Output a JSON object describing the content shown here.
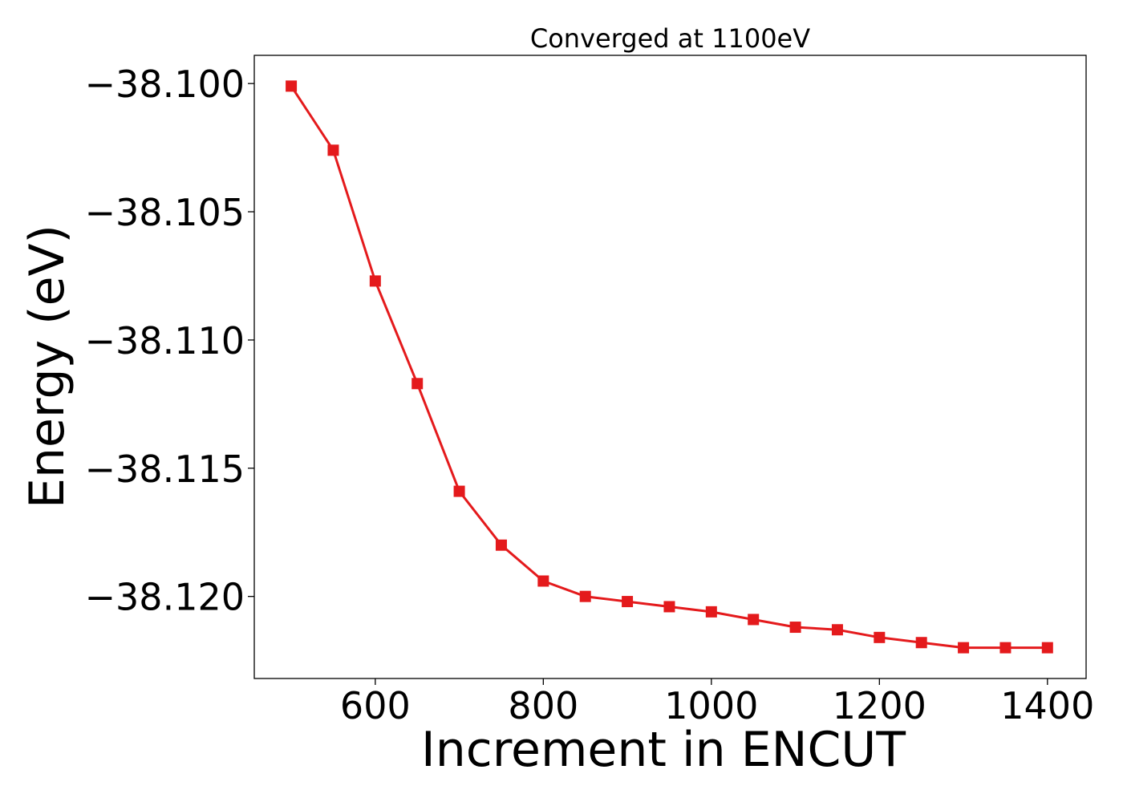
{
  "chart_data": {
    "type": "line",
    "title": "Converged at 1100eV",
    "xlabel": "Increment in ENCUT",
    "ylabel": "Energy (eV)",
    "xlim": [
      456,
      1446
    ],
    "ylim": [
      -38.1232,
      -38.0989
    ],
    "xticks": [
      600,
      800,
      1000,
      1200,
      1400
    ],
    "xtick_labels": [
      "600",
      "800",
      "1000",
      "1200",
      "1400"
    ],
    "yticks": [
      -38.1,
      -38.105,
      -38.11,
      -38.115,
      -38.12
    ],
    "ytick_labels": [
      "−38.100",
      "−38.105",
      "−38.110",
      "−38.115",
      "−38.120"
    ],
    "grid": false,
    "series": [
      {
        "color": "#e41a1c",
        "marker": "square",
        "x": [
          500,
          550,
          600,
          650,
          700,
          750,
          800,
          850,
          900,
          950,
          1000,
          1050,
          1100,
          1150,
          1200,
          1250,
          1300,
          1350,
          1400
        ],
        "y": [
          -38.1001,
          -38.1026,
          -38.1077,
          -38.1117,
          -38.1159,
          -38.118,
          -38.1194,
          -38.12,
          -38.1202,
          -38.1204,
          -38.1206,
          -38.1209,
          -38.1212,
          -38.1213,
          -38.1216,
          -38.1218,
          -38.122,
          -38.122,
          -38.122
        ]
      }
    ]
  }
}
